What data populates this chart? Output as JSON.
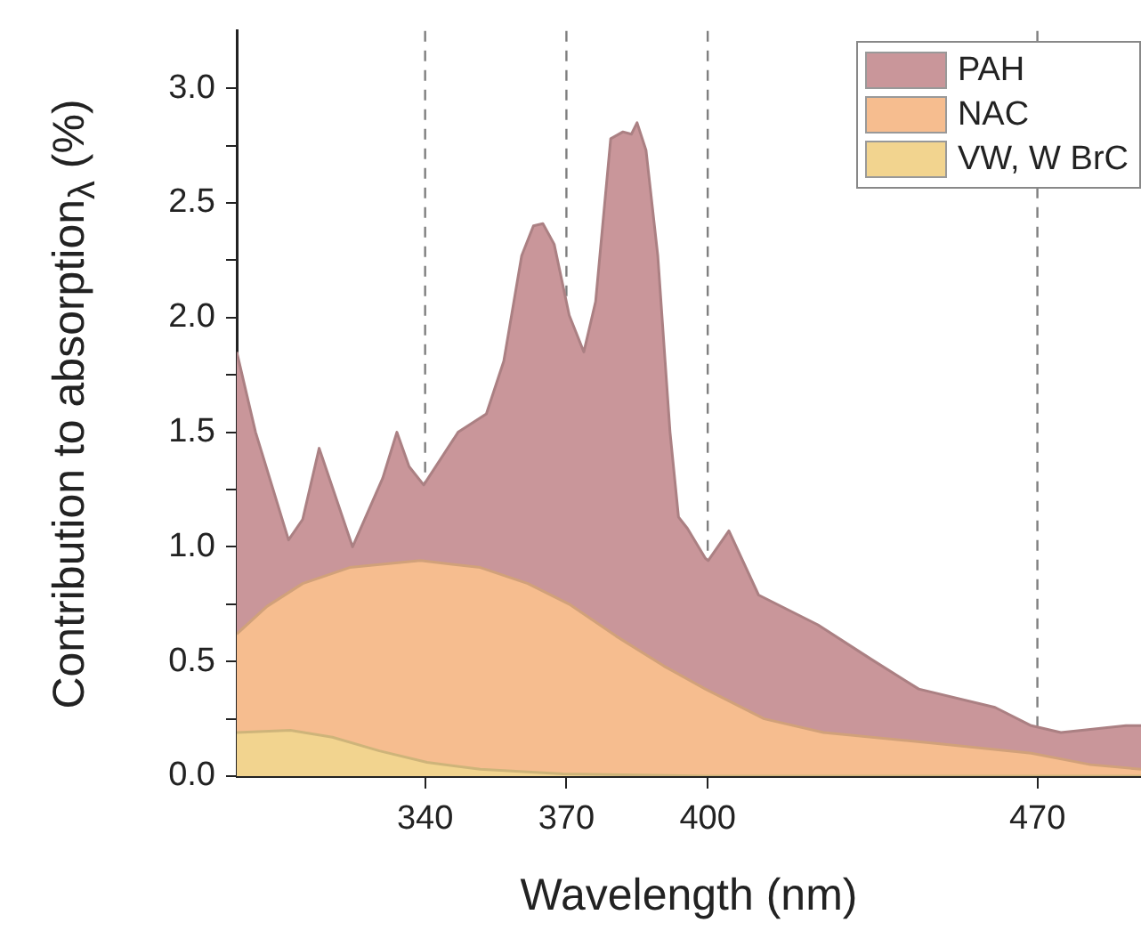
{
  "chart_data": {
    "type": "area",
    "xlabel": "Wavelength (nm)",
    "ylabel": "Contribution to absorption$_{λ}$ (%)",
    "xlim": [
      300,
      492
    ],
    "xticks": [
      340,
      370,
      400,
      470
    ],
    "ylim": [
      0,
      3.25
    ],
    "yticks": [
      {
        "value": 0,
        "label": "0.0"
      },
      {
        "value": 0.25,
        "label": null
      },
      {
        "value": 0.5,
        "label": "0.5"
      },
      {
        "value": 0.75,
        "label": null
      },
      {
        "value": 1,
        "label": "1.0"
      },
      {
        "value": 1.25,
        "label": null
      },
      {
        "value": 1.5,
        "label": "1.5"
      },
      {
        "value": 1.75,
        "label": null
      },
      {
        "value": 2,
        "label": "2.0"
      },
      {
        "value": 2.25,
        "label": null
      },
      {
        "value": 2.5,
        "label": "2.5"
      },
      {
        "value": 2.75,
        "label": null
      },
      {
        "value": 3,
        "label": "3.0"
      }
    ],
    "grid": false,
    "legend": "top right",
    "ref_lines": [
      {
        "axis": "x",
        "value": 340,
        "color": "#7f7f7f",
        "line_style": "dashed"
      },
      {
        "axis": "x",
        "value": 370,
        "color": "#7f7f7f",
        "line_style": "dashed"
      },
      {
        "axis": "x",
        "value": 400,
        "color": "#7f7f7f",
        "line_style": "dashed"
      },
      {
        "axis": "x",
        "value": 470,
        "color": "#7f7f7f",
        "line_style": "dashed"
      }
    ],
    "series": [
      {
        "name": "PAH",
        "color": "#c9969a",
        "x": [
          300,
          304,
          311,
          314,
          317.5,
          324.6,
          331,
          334,
          336.6,
          339.7,
          347,
          353,
          356.7,
          360.5,
          363,
          365,
          367.4,
          370.6,
          373.7,
          376.2,
          379.4,
          382,
          383.8,
          385,
          386.9,
          389.4,
          392,
          393.8,
          395.7,
          399.5,
          400.1,
          404.5,
          410.8,
          423.4,
          434.7,
          444.8,
          461,
          468.7,
          475,
          488.8,
          492
        ],
        "values": [
          1.85,
          1.5,
          1.03,
          1.12,
          1.43,
          1.0,
          1.3,
          1.5,
          1.35,
          1.27,
          1.5,
          1.58,
          1.81,
          2.27,
          2.4,
          2.41,
          2.32,
          2.01,
          1.85,
          2.07,
          2.78,
          2.81,
          2.8,
          2.85,
          2.73,
          2.27,
          1.5,
          1.13,
          1.08,
          0.95,
          0.94,
          1.07,
          0.79,
          0.66,
          0.51,
          0.38,
          0.3,
          0.22,
          0.19,
          0.22,
          0.22
        ]
      },
      {
        "name": "NAC",
        "color": "#f6bd8f",
        "x": [
          300,
          306.4,
          314,
          324,
          339,
          351.7,
          361.8,
          370.6,
          380.6,
          390.7,
          399.5,
          412,
          424.6,
          449.8,
          468.7,
          481.3,
          492
        ],
        "values": [
          0.62,
          0.74,
          0.84,
          0.91,
          0.94,
          0.91,
          0.84,
          0.75,
          0.61,
          0.48,
          0.38,
          0.25,
          0.19,
          0.14,
          0.1,
          0.05,
          0.03
        ]
      },
      {
        "name": "VW, W BrC",
        "color": "#f2d48f",
        "x": [
          300,
          311.4,
          320.3,
          330.3,
          340.4,
          351.7,
          369.3,
          399.5,
          440,
          492
        ],
        "values": [
          0.19,
          0.2,
          0.17,
          0.11,
          0.06,
          0.03,
          0.01,
          0,
          0,
          0
        ]
      }
    ]
  }
}
